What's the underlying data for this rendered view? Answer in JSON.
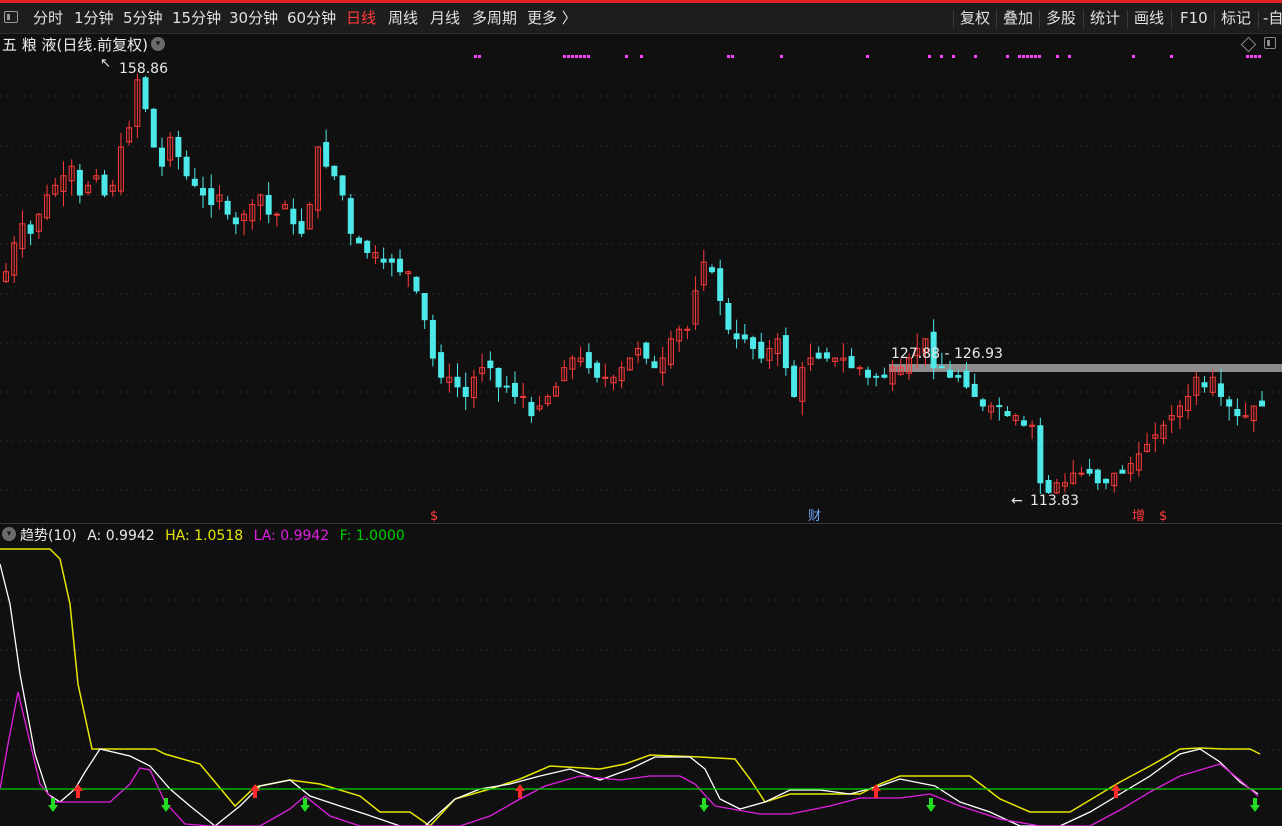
{
  "toolbar": {
    "periods": [
      "分时",
      "1分钟",
      "5分钟",
      "15分钟",
      "30分钟",
      "60分钟",
      "日线",
      "周线",
      "月线",
      "多周期",
      "更多 〉"
    ],
    "active_period": "日线",
    "tools": [
      "复权",
      "叠加",
      "多股",
      "统计",
      "画线",
      "F10",
      "标记",
      "-自"
    ]
  },
  "chart": {
    "title": "五 粮 液(日线.前复权)",
    "high_label": "158.86",
    "low_label": "113.83",
    "range_label": "127.88 - 126.93",
    "event_markers": [
      "$",
      "财",
      "增",
      "$"
    ]
  },
  "indicator": {
    "name": "趋势(10)",
    "a": "A: 0.9942",
    "ha": "HA: 1.0518",
    "la": "LA: 0.9942",
    "f": "F: 1.0000"
  },
  "colors": {
    "up": "#ff3b3b",
    "down": "#4de8e8",
    "ha_line": "#e6e600",
    "la_line": "#e020e0",
    "a_line": "#ffffff",
    "f_line": "#00d000",
    "range_band": "#8c8c8c",
    "markers": "#ff40ff"
  },
  "chart_data": {
    "type": "candlestick",
    "title": "五 粮 液(日线.前复权)",
    "price_high": 158.86,
    "price_low": 113.83,
    "band": [
      127.88,
      126.93
    ],
    "closes": [
      137,
      140,
      142,
      141,
      143,
      145,
      146,
      147,
      148,
      145,
      146,
      147,
      145,
      146,
      150,
      152,
      157,
      154,
      150,
      148,
      151,
      149,
      147,
      146,
      145,
      144,
      145,
      143,
      142,
      143,
      144,
      145,
      143,
      143,
      144,
      142,
      141,
      144,
      150,
      148,
      147,
      145,
      141,
      140,
      139,
      139,
      138,
      138,
      137,
      137,
      135,
      132,
      128,
      126,
      126,
      125,
      124,
      126,
      127,
      127,
      125,
      125,
      124,
      124,
      122,
      123,
      124,
      125,
      127,
      128,
      128,
      127,
      126,
      126,
      126,
      127,
      128,
      129,
      128,
      127,
      128,
      130,
      131,
      131,
      135,
      138,
      137,
      134,
      131,
      130,
      130,
      129,
      128,
      129,
      130,
      127,
      124,
      127,
      128,
      128,
      128,
      128,
      128,
      127,
      127,
      126,
      126,
      126,
      127,
      127,
      128,
      129,
      130,
      127,
      127,
      126,
      126,
      125,
      124,
      123,
      123,
      123,
      122,
      122,
      121,
      121,
      115,
      114,
      115,
      115,
      116,
      116,
      116,
      115,
      115,
      116,
      116,
      117,
      118,
      119,
      120,
      121,
      122,
      123,
      124,
      126,
      125,
      126,
      124,
      123,
      122,
      122,
      123,
      123
    ],
    "indicator_series": [
      {
        "name": "A",
        "last": 0.9942
      },
      {
        "name": "HA",
        "last": 1.0518
      },
      {
        "name": "LA",
        "last": 0.9942
      },
      {
        "name": "F",
        "last": 1.0
      }
    ]
  }
}
